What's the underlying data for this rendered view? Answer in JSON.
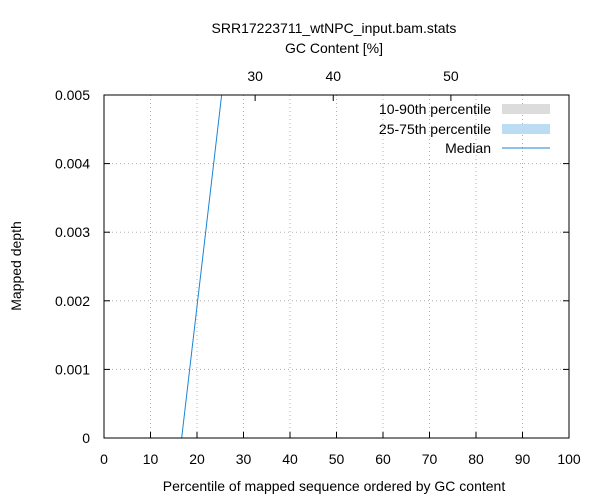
{
  "chart_data": {
    "type": "line",
    "title": "SRR17223711_wtNPC_input.bam.stats",
    "xlabel": "Percentile of mapped sequence ordered by GC content",
    "ylabel": "Mapped depth",
    "x2label": "GC Content [%]",
    "xlim": [
      0,
      100
    ],
    "ylim": [
      0,
      0.005
    ],
    "grid": true,
    "legend_position": "top-right",
    "xticks": [
      "0",
      "10",
      "20",
      "30",
      "40",
      "50",
      "60",
      "70",
      "80",
      "90",
      "100"
    ],
    "yticks": [
      "0",
      "0.001",
      "0.002",
      "0.003",
      "0.004",
      "0.005"
    ],
    "x2ticks": [
      {
        "label": "30",
        "at_percentile": 32.5
      },
      {
        "label": "40",
        "at_percentile": 49.3
      },
      {
        "label": "50",
        "at_percentile": 74.6
      }
    ],
    "legend": [
      {
        "label": "10-90th percentile",
        "color": "#dcdcdc",
        "style": "fill"
      },
      {
        "label": "25-75th percentile",
        "color": "#bcdcf4",
        "style": "fill"
      },
      {
        "label": "Median",
        "color": "#1a85d4",
        "style": "line"
      }
    ],
    "series": [
      {
        "name": "Median",
        "color": "#1a85d4",
        "points": [
          [
            16.7,
            0.0
          ],
          [
            25.3,
            0.005
          ]
        ]
      }
    ]
  }
}
